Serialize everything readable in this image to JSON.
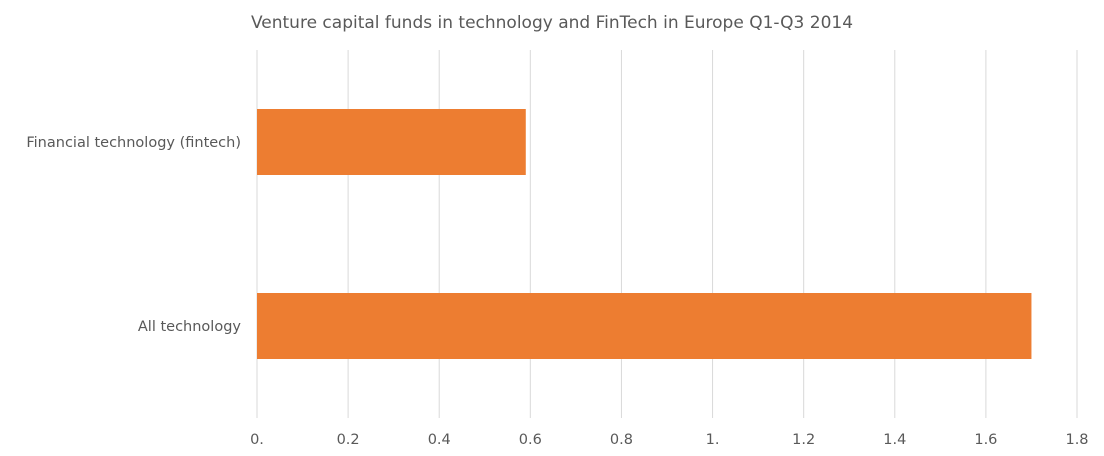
{
  "chart_data": {
    "type": "bar",
    "orientation": "horizontal",
    "title": "Venture capital funds in technology and FinTech in Europe Q1-Q3 2014",
    "xlabel": "",
    "ylabel": "",
    "categories": [
      "Financial technology (fintech)",
      "All technology"
    ],
    "series": [
      {
        "values": [
          0.59,
          1.7
        ]
      }
    ],
    "xlim": [
      0,
      1.8
    ],
    "ticks": [
      0,
      0.2,
      0.4,
      0.6,
      0.8,
      1.0,
      1.2,
      1.4,
      1.6,
      1.8
    ],
    "tick_labels": [
      "0.",
      "0.2",
      "0.4",
      "0.6",
      "0.8",
      "1.",
      "1.2",
      "1.4",
      "1.6",
      "1.8"
    ],
    "grid": "vertical gridlines",
    "legend": "none",
    "bar_color": "#ed7d31"
  }
}
